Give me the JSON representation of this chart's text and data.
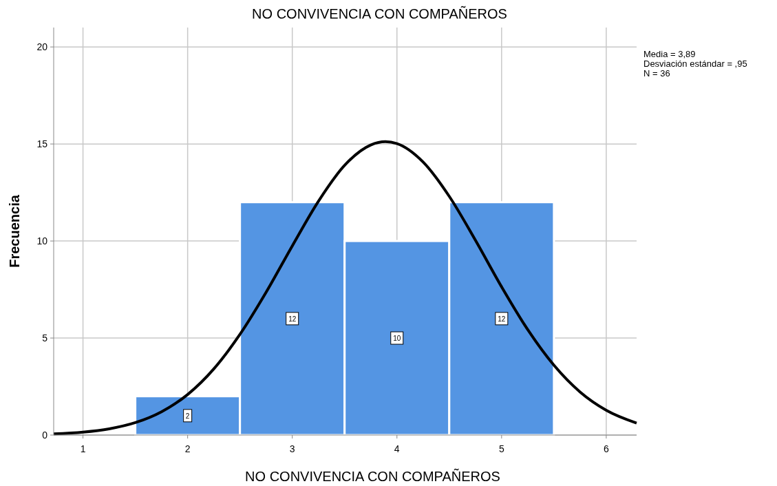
{
  "chart_data": {
    "type": "histogram",
    "title": "NO CONVIVENCIA CON COMPAÑEROS",
    "xlabel": "NO CONVIVENCIA CON COMPAÑEROS",
    "ylabel": "Frecuencia",
    "bins": [
      1.5,
      2.5,
      3.5,
      4.5,
      5.5
    ],
    "series": [
      {
        "color": "#5495e3",
        "values": [
          2,
          12,
          10,
          12
        ],
        "value_labels": [
          "2",
          "12",
          "10",
          "12"
        ]
      },
      {
        "type": "line",
        "color": "#000000",
        "x": [
          0.72,
          1,
          1.25,
          1.5,
          1.75,
          2,
          2.25,
          2.5,
          2.75,
          3,
          3.25,
          3.5,
          3.75,
          3.89,
          4,
          4.25,
          4.5,
          4.75,
          5,
          5.25,
          5.5,
          5.75,
          6,
          6.29
        ],
        "values": [
          0.06,
          0.15,
          0.32,
          0.64,
          1.2,
          2.09,
          3.41,
          5.19,
          7.36,
          9.75,
          12.05,
          13.9,
          14.95,
          15.12,
          15.02,
          14.07,
          12.3,
          10.04,
          7.64,
          5.43,
          3.6,
          2.22,
          1.28,
          0.62
        ]
      }
    ],
    "xlim": [
      0.72,
      6.29
    ],
    "xticks": [
      1,
      2,
      3,
      4,
      5,
      6
    ],
    "ylim": [
      0,
      21
    ],
    "yticks": [
      0,
      5,
      10,
      15,
      20
    ],
    "grid": true,
    "annotations": [
      "Media = 3,89",
      "Desviación estándar = ,95",
      "N = 36"
    ]
  }
}
